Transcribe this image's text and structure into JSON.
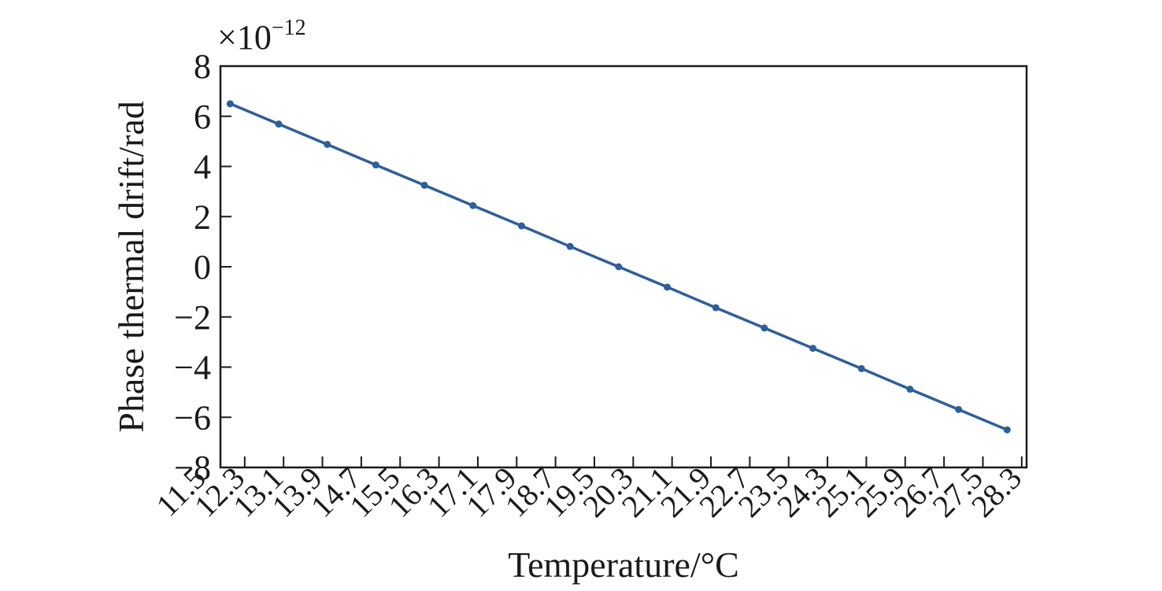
{
  "chart_data": {
    "type": "line",
    "title": "",
    "xlabel": "Temperature/°C",
    "ylabel": "Phase thermal drift/rad",
    "y_multiplier": {
      "base": "×10",
      "exponent": "−12"
    },
    "xlim": [
      11.5,
      28.3
    ],
    "ylim": [
      -8,
      8
    ],
    "yticks": [
      8,
      6,
      4,
      2,
      0,
      -2,
      -4,
      -6,
      -8
    ],
    "ytick_labels": [
      "8",
      "6",
      "4",
      "2",
      "0",
      "−2",
      "−4",
      "−6",
      "−8"
    ],
    "xticks": [
      11.5,
      12.3,
      13.1,
      13.9,
      14.7,
      15.5,
      16.3,
      17.1,
      17.9,
      18.7,
      19.5,
      20.3,
      21.1,
      21.9,
      22.7,
      23.5,
      24.3,
      25.1,
      25.9,
      26.7,
      27.5,
      28.3
    ],
    "xtick_labels": [
      "11.5",
      "12.3",
      "13.1",
      "13.9",
      "14.7",
      "15.5",
      "16.3",
      "17.1",
      "17.9",
      "18.7",
      "19.5",
      "20.3",
      "21.1",
      "21.9",
      "22.7",
      "23.5",
      "24.3",
      "25.1",
      "25.9",
      "26.7",
      "27.5",
      "28.3"
    ],
    "grid": false,
    "line_color": "#2e5f9a",
    "series": [
      {
        "x": [
          12.0,
          13.0,
          14.0,
          15.0,
          16.0,
          17.0,
          18.0,
          19.0,
          20.0,
          21.0,
          22.0,
          23.0,
          24.0,
          25.0,
          26.0,
          27.0,
          28.0
        ],
        "values": [
          6.5,
          5.69,
          4.88,
          4.06,
          3.25,
          2.44,
          1.63,
          0.81,
          0.0,
          -0.81,
          -1.63,
          -2.44,
          -3.25,
          -4.06,
          -4.88,
          -5.69,
          -6.5
        ]
      }
    ]
  }
}
